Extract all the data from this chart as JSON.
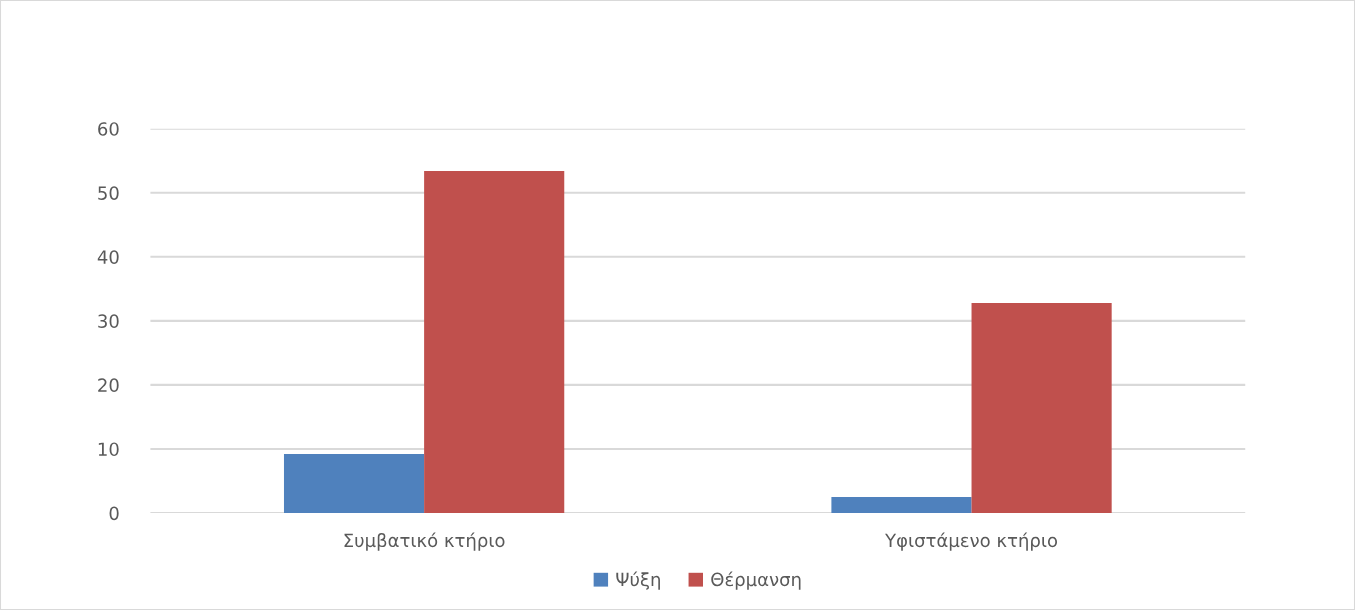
{
  "chart_data": {
    "type": "bar",
    "categories": [
      "Συμβατικό κτήριο",
      "Υφιστάμενο κτήριο"
    ],
    "series": [
      {
        "name": "Ψύξη",
        "color": "#4f81bd",
        "values": [
          9.2,
          2.5
        ]
      },
      {
        "name": "Θέρμανση",
        "color": "#c0504d",
        "values": [
          53.4,
          32.8
        ]
      }
    ],
    "ylim": [
      0,
      60
    ],
    "yticks": [
      0,
      10,
      20,
      30,
      40,
      50,
      60
    ],
    "grid": "y",
    "legend": "bottom"
  }
}
